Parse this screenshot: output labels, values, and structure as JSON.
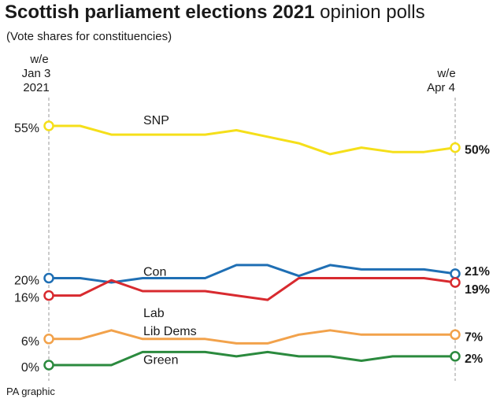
{
  "title_bold": "Scottish parliament elections 2021",
  "title_light": "opinion polls",
  "subtitle": "(Vote shares for constituencies)",
  "footer": "PA graphic",
  "start_label": [
    "w/e",
    "Jan 3",
    "2021"
  ],
  "end_label": [
    "w/e",
    "Apr 4"
  ],
  "chart_data": {
    "type": "line",
    "title": "Scottish parliament elections 2021 opinion polls",
    "subtitle": "(Vote shares for constituencies)",
    "x": [
      1,
      2,
      3,
      4,
      5,
      6,
      7,
      8,
      9,
      10,
      11,
      12,
      13,
      14
    ],
    "x_start_label": "w/e Jan 3 2021",
    "x_end_label": "w/e Apr 4",
    "ylim": [
      0,
      55
    ],
    "grid": false,
    "series": [
      {
        "name": "SNP",
        "color": "#f5df1a",
        "values": [
          55,
          55,
          53,
          53,
          53,
          53,
          54,
          52.5,
          51,
          48.5,
          50,
          49,
          49,
          50
        ],
        "start_label": "55%",
        "end_label": "50%"
      },
      {
        "name": "Con",
        "color": "#1f6fb4",
        "values": [
          20,
          20,
          19,
          20,
          20,
          20,
          23,
          23,
          20.5,
          23,
          22,
          22,
          22,
          21
        ],
        "start_label": "20%",
        "end_label": "21%"
      },
      {
        "name": "Lab",
        "color": "#d82a2f",
        "values": [
          16,
          16,
          19.5,
          17,
          17,
          17,
          16,
          15,
          20,
          20,
          20,
          20,
          20,
          19
        ],
        "start_label": "16%",
        "end_label": "19%"
      },
      {
        "name": "Lib Dems",
        "color": "#f2a24b",
        "values": [
          6,
          6,
          8,
          6,
          6,
          6,
          5,
          5,
          7,
          8,
          7,
          7,
          7,
          7
        ],
        "start_label": "6%",
        "end_label": "7%"
      },
      {
        "name": "Green",
        "color": "#2b8a3e",
        "values": [
          0,
          0,
          0,
          3,
          3,
          3,
          2,
          3,
          2,
          2,
          1,
          2,
          2,
          2
        ],
        "start_label": "0%",
        "end_label": "2%"
      }
    ]
  }
}
